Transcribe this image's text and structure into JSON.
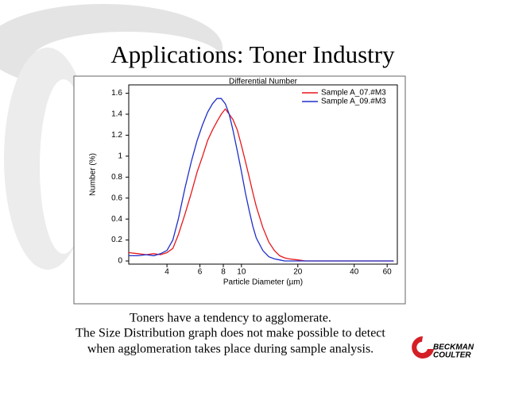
{
  "slide": {
    "title": "Applications: Toner Industry",
    "caption": [
      "Toners have a tendency to agglomerate.",
      "The Size Distribution graph does not make possible to detect",
      "when agglomeration takes place during sample analysis."
    ],
    "logo": [
      "BECKMAN",
      "COULTER"
    ]
  },
  "chart_data": {
    "type": "line",
    "title": "Differential Number",
    "x_label": "Particle Diameter (µm)",
    "y_label": "Number (%)",
    "xscale": "log",
    "grid": false,
    "legend": "top-right",
    "xlim": [
      2.5,
      68
    ],
    "xticks": [
      4,
      6,
      8,
      10,
      20,
      40,
      60
    ],
    "ylim": [
      -0.03,
      1.68
    ],
    "yticks": [
      0,
      0.2,
      0.4,
      0.6,
      0.8,
      1,
      1.2,
      1.4,
      1.6
    ],
    "x": [
      2.5,
      2.8,
      3.1,
      3.4,
      3.7,
      4.0,
      4.3,
      4.6,
      5.0,
      5.4,
      5.8,
      6.2,
      6.6,
      7.0,
      7.4,
      7.8,
      8.2,
      8.6,
      9.0,
      9.5,
      10,
      10.5,
      11,
      11.5,
      12,
      13,
      14,
      15,
      16,
      17,
      18,
      20,
      22,
      25,
      30,
      40,
      50,
      65
    ],
    "series": [
      {
        "name": "Sample A_07.#M3",
        "color": "#e8171b",
        "values": [
          0.08,
          0.07,
          0.06,
          0.07,
          0.06,
          0.08,
          0.12,
          0.25,
          0.45,
          0.65,
          0.85,
          1.0,
          1.15,
          1.25,
          1.33,
          1.4,
          1.45,
          1.4,
          1.35,
          1.25,
          1.1,
          0.95,
          0.8,
          0.65,
          0.52,
          0.32,
          0.18,
          0.1,
          0.05,
          0.03,
          0.02,
          0.01,
          0,
          0,
          0,
          0,
          0,
          0
        ]
      },
      {
        "name": "Sample A_09.#M3",
        "color": "#1f2fc8",
        "values": [
          0.05,
          0.05,
          0.06,
          0.05,
          0.07,
          0.1,
          0.2,
          0.4,
          0.7,
          0.95,
          1.15,
          1.3,
          1.42,
          1.5,
          1.55,
          1.55,
          1.5,
          1.4,
          1.25,
          1.05,
          0.85,
          0.65,
          0.48,
          0.33,
          0.22,
          0.1,
          0.04,
          0.02,
          0.01,
          0,
          0,
          0,
          0,
          0,
          0,
          0,
          0,
          0
        ]
      }
    ]
  }
}
